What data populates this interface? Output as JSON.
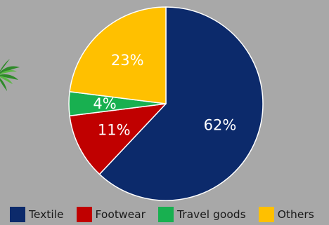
{
  "decorations": {
    "palm_icon": "palm-leaf-icon"
  },
  "chart_data": {
    "type": "pie",
    "categories": [
      "Textile",
      "Footwear",
      "Travel goods",
      "Others"
    ],
    "values": [
      62,
      11,
      4,
      23
    ],
    "labels": [
      "62%",
      "11%",
      "4%",
      "23%"
    ],
    "colors": [
      "#0c2a6b",
      "#c00000",
      "#18b050",
      "#ffc000"
    ],
    "start": "12 o'clock, clockwise",
    "legend_position": "bottom"
  }
}
